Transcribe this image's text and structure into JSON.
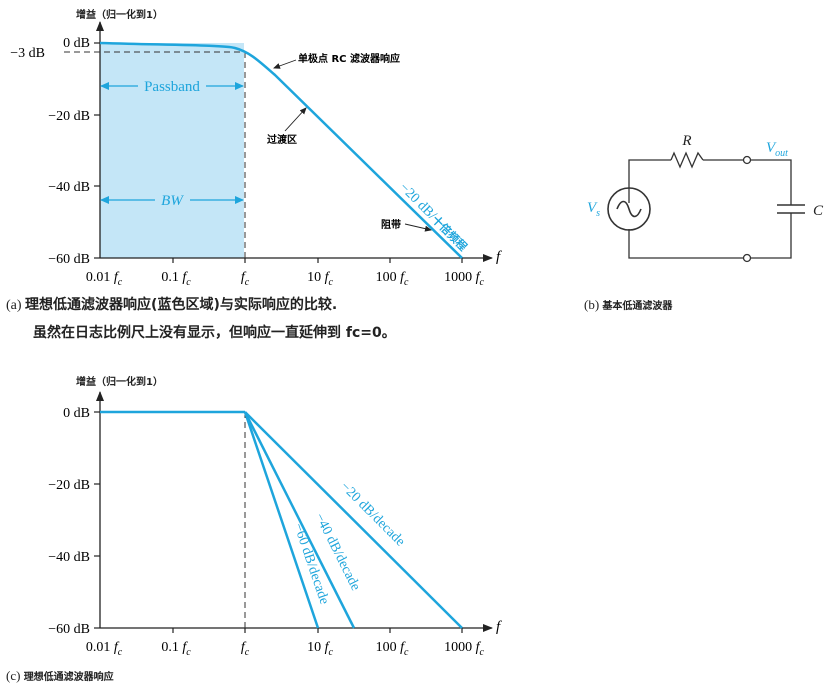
{
  "colors": {
    "accent": "#1ea5dc",
    "passband_fill": "#c4e6f7",
    "axis": "#222222"
  },
  "panel_a": {
    "ylabel": "增益（归一化到1）",
    "xlabel": "f",
    "y_ticks": [
      "0 dB",
      "−20 dB",
      "−40 dB",
      "−60 dB"
    ],
    "minus3_label": "−3 dB",
    "x_ticks": [
      "0.01",
      "0.1",
      "",
      "10",
      "100",
      "1000"
    ],
    "fc_symbol": "f",
    "fc_sub": "c",
    "passband_label": "Passband",
    "bw_label": "BW",
    "slope_label": "−20 dB/",
    "slope_label_cjk": "十倍频程",
    "annotation_response": "单极点 RC 滤波器响应",
    "annotation_transition": "过渡区",
    "annotation_stopband": "阻带"
  },
  "caption_a": {
    "prefix": "(a)",
    "line1": "理想低通滤波器响应(蓝色区域)与实际响应的比较.",
    "line2": "虽然在日志比例尺上没有显示，但响应一直延伸到 fc=0。"
  },
  "panel_b": {
    "r_label": "R",
    "c_label": "C",
    "vs_label": "V",
    "vs_sub": "s",
    "vout_label": "V",
    "vout_sub": "out"
  },
  "caption_b": {
    "prefix": "(b)",
    "text": "基本低通滤波器"
  },
  "panel_c": {
    "ylabel": "增益（归一化到1）",
    "xlabel": "f",
    "y_ticks": [
      "0 dB",
      "−20 dB",
      "−40 dB",
      "−60 dB"
    ],
    "x_ticks": [
      "0.01",
      "0.1",
      "",
      "10",
      "100",
      "1000"
    ],
    "slope_labels": [
      "−20 dB/decade",
      "−40 dB/decade",
      "−60 dB/decade"
    ]
  },
  "caption_c": {
    "prefix": "(c)",
    "text": "理想低通滤波器响应"
  }
}
